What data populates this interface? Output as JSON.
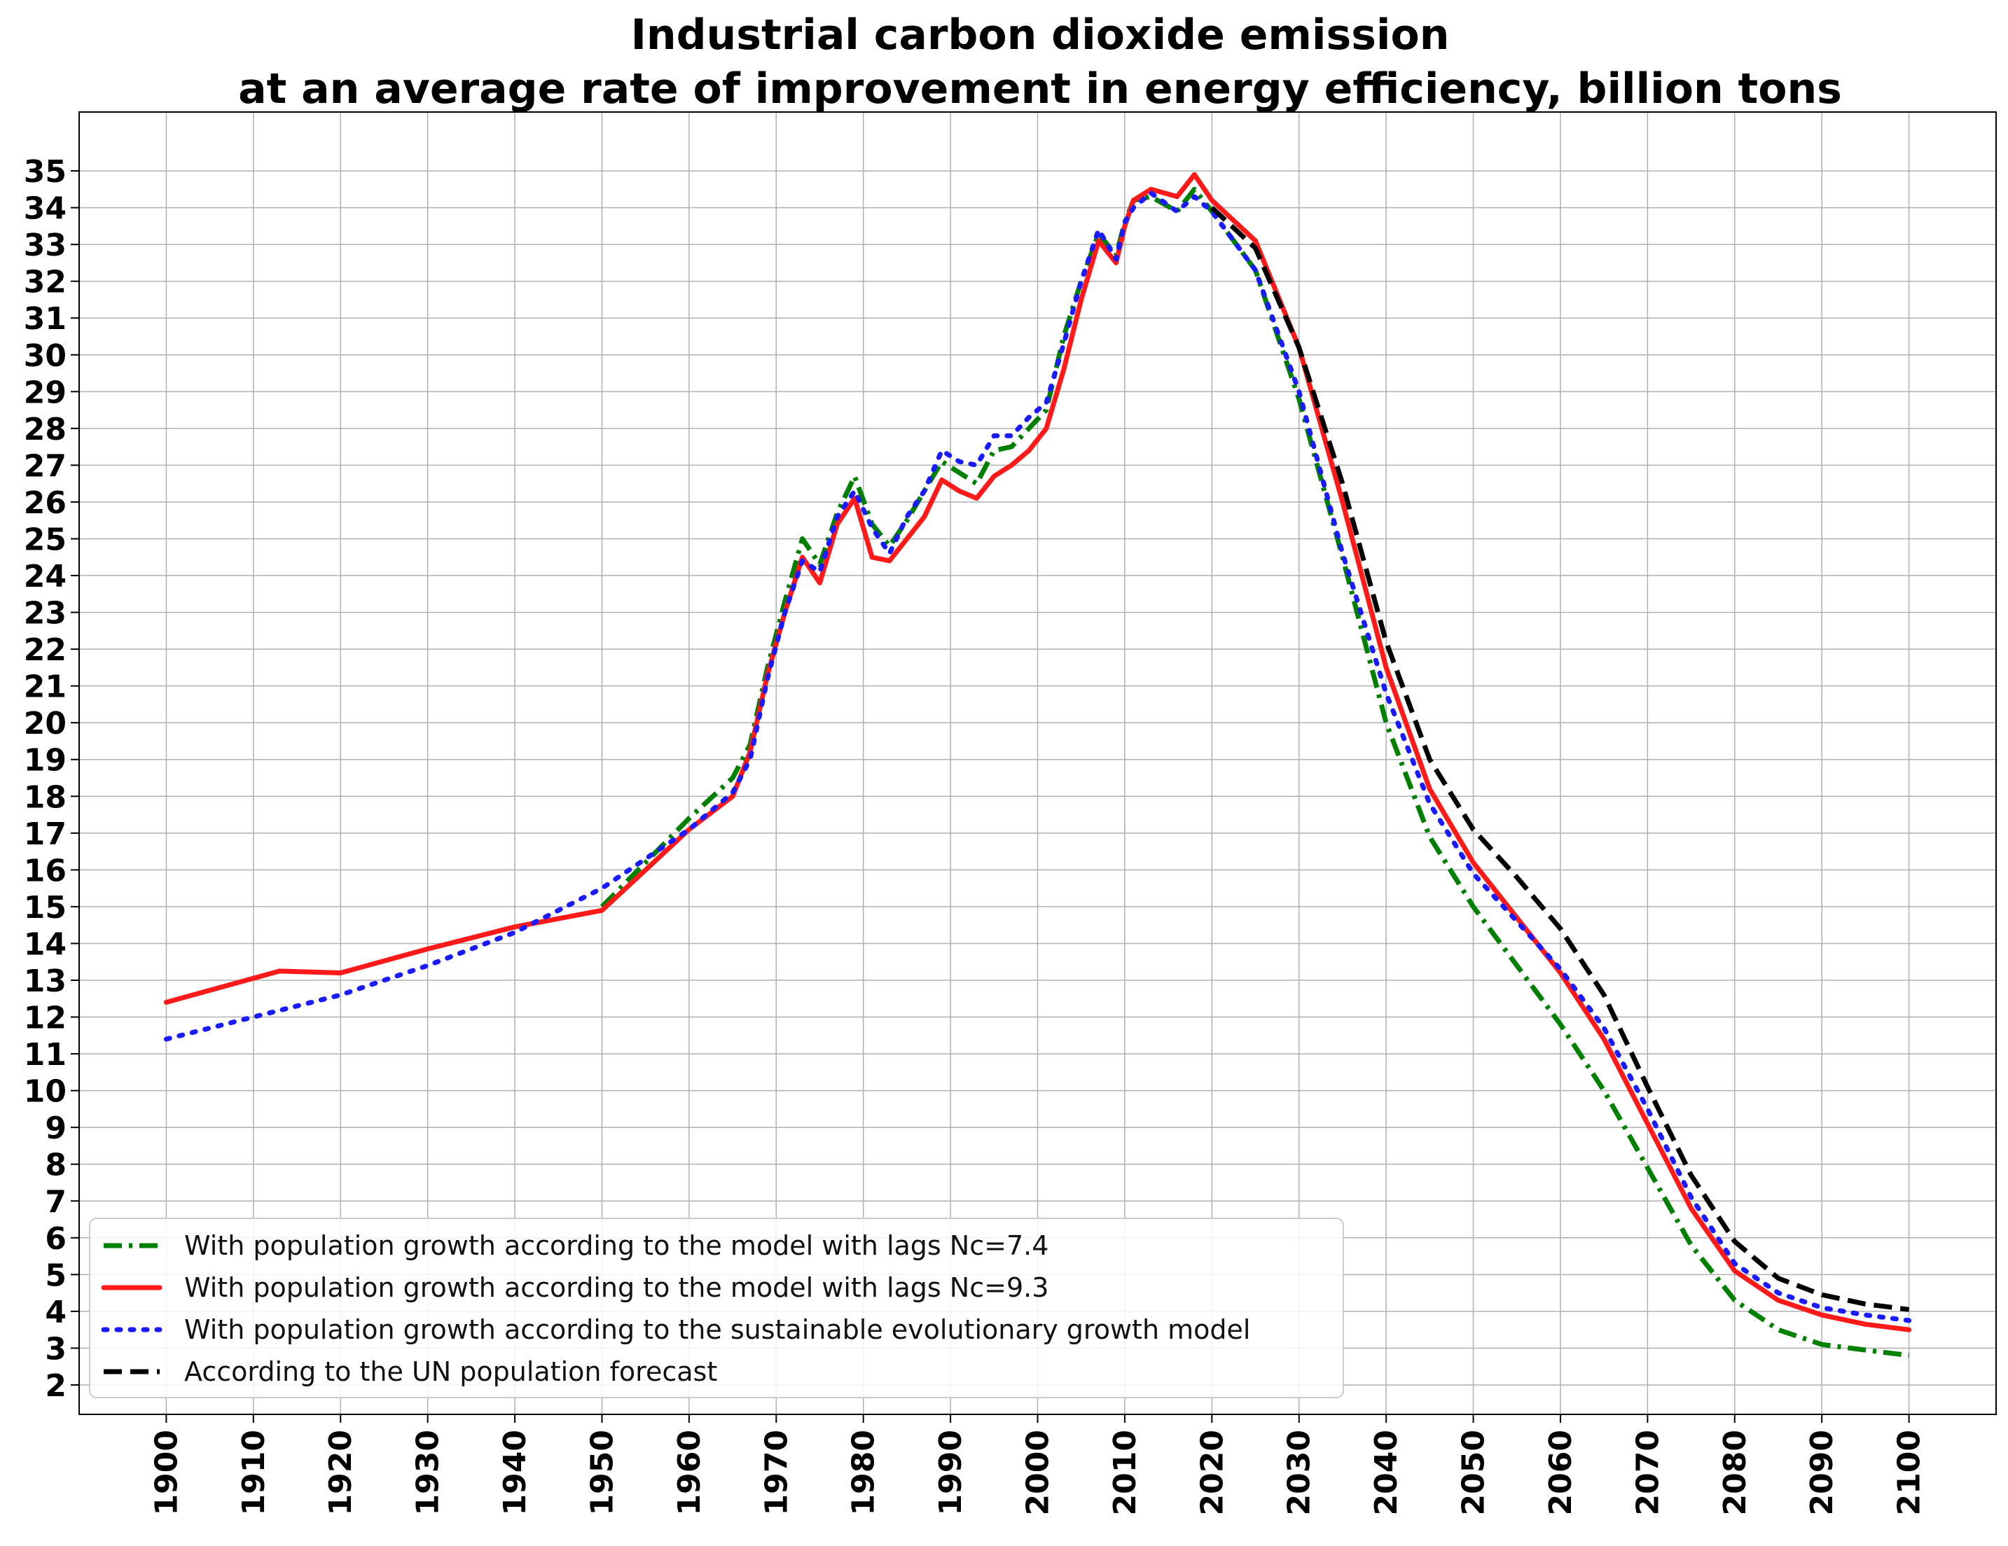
{
  "chart_data": {
    "type": "line",
    "title": "Industrial carbon dioxide emission",
    "subtitle": "at an average rate of improvement in energy efficiency, billion tons",
    "xlabel": "",
    "ylabel": "",
    "xlim": [
      1890,
      2110
    ],
    "ylim": [
      1.2,
      36.6
    ],
    "x_ticks": [
      1900,
      1910,
      1920,
      1930,
      1940,
      1950,
      1960,
      1970,
      1980,
      1990,
      2000,
      2010,
      2020,
      2030,
      2040,
      2050,
      2060,
      2070,
      2080,
      2090,
      2100
    ],
    "y_ticks": [
      2,
      3,
      4,
      5,
      6,
      7,
      8,
      9,
      10,
      11,
      12,
      13,
      14,
      15,
      16,
      17,
      18,
      19,
      20,
      21,
      22,
      23,
      24,
      25,
      26,
      27,
      28,
      29,
      30,
      31,
      32,
      33,
      34,
      35
    ],
    "grid": true,
    "legend_position": "bottom-left",
    "series": [
      {
        "name": "With population growth according to the model with lags Nc=7.4",
        "color": "#008000",
        "style": "dashdot",
        "x": [
          1950,
          1955,
          1960,
          1965,
          1967,
          1969,
          1971,
          1973,
          1975,
          1977,
          1979,
          1981,
          1983,
          1985,
          1987,
          1989,
          1991,
          1993,
          1995,
          1997,
          1999,
          2001,
          2003,
          2005,
          2007,
          2009,
          2010,
          2011,
          2013,
          2016,
          2018,
          2020,
          2025,
          2030,
          2035,
          2040,
          2045,
          2050,
          2055,
          2060,
          2065,
          2070,
          2075,
          2080,
          2085,
          2090,
          2095,
          2100
        ],
        "y": [
          15.0,
          16.2,
          17.4,
          18.5,
          19.4,
          21.5,
          23.3,
          25.0,
          24.3,
          25.7,
          26.7,
          25.4,
          24.8,
          25.5,
          26.3,
          27.1,
          26.8,
          26.5,
          27.4,
          27.5,
          28.0,
          28.5,
          30.5,
          32.0,
          33.3,
          32.7,
          33.6,
          34.2,
          34.3,
          33.9,
          34.5,
          33.9,
          32.3,
          28.8,
          24.5,
          20.0,
          16.9,
          15.0,
          13.4,
          11.8,
          10.0,
          7.9,
          5.8,
          4.3,
          3.5,
          3.1,
          2.95,
          2.8
        ]
      },
      {
        "name": "With population growth according to the model with lags  Nc=9.3",
        "color": "#ff1a1a",
        "style": "solid",
        "x": [
          1900,
          1913,
          1920,
          1930,
          1940,
          1950,
          1955,
          1960,
          1965,
          1967,
          1969,
          1971,
          1973,
          1975,
          1977,
          1979,
          1981,
          1983,
          1985,
          1987,
          1989,
          1991,
          1993,
          1995,
          1997,
          1999,
          2001,
          2003,
          2005,
          2007,
          2009,
          2010,
          2011,
          2013,
          2016,
          2018,
          2020,
          2025,
          2030,
          2035,
          2040,
          2045,
          2050,
          2055,
          2060,
          2065,
          2070,
          2075,
          2080,
          2085,
          2090,
          2095,
          2100
        ],
        "y": [
          12.4,
          13.25,
          13.2,
          13.85,
          14.45,
          14.9,
          16.0,
          17.1,
          18.0,
          19.2,
          21.3,
          23.0,
          24.5,
          23.8,
          25.4,
          26.1,
          24.5,
          24.4,
          25.0,
          25.6,
          26.6,
          26.3,
          26.1,
          26.7,
          27.0,
          27.4,
          28.0,
          29.6,
          31.5,
          33.1,
          32.5,
          33.5,
          34.2,
          34.5,
          34.3,
          34.9,
          34.2,
          33.1,
          30.2,
          26.0,
          21.5,
          18.2,
          16.2,
          14.7,
          13.2,
          11.4,
          9.1,
          6.8,
          5.1,
          4.3,
          3.9,
          3.65,
          3.5
        ]
      },
      {
        "name": "With population growth according to the sustainable evolutionary growth model",
        "color": "#1a1aff",
        "style": "dotted",
        "x": [
          1900,
          1910,
          1920,
          1930,
          1940,
          1950,
          1955,
          1960,
          1965,
          1967,
          1969,
          1971,
          1973,
          1975,
          1977,
          1979,
          1981,
          1983,
          1985,
          1987,
          1989,
          1991,
          1993,
          1995,
          1997,
          1999,
          2001,
          2003,
          2005,
          2007,
          2009,
          2010,
          2011,
          2013,
          2016,
          2018,
          2020,
          2025,
          2030,
          2035,
          2040,
          2045,
          2050,
          2055,
          2060,
          2065,
          2070,
          2075,
          2080,
          2085,
          2090,
          2095,
          2100
        ],
        "y": [
          11.4,
          12.0,
          12.6,
          13.4,
          14.3,
          15.5,
          16.3,
          17.1,
          18.1,
          19.0,
          21.2,
          23.0,
          24.4,
          24.1,
          25.6,
          26.3,
          25.3,
          24.6,
          25.6,
          26.3,
          27.4,
          27.1,
          27.0,
          27.8,
          27.8,
          28.3,
          28.7,
          30.3,
          32.0,
          33.4,
          32.6,
          33.6,
          34.0,
          34.4,
          33.9,
          34.3,
          33.9,
          32.3,
          29.0,
          24.6,
          20.8,
          17.8,
          15.9,
          14.6,
          13.3,
          11.7,
          9.5,
          7.1,
          5.3,
          4.5,
          4.1,
          3.9,
          3.75
        ]
      },
      {
        "name": "According to the UN population forecast",
        "color": "#000000",
        "style": "dashed",
        "x": [
          2020,
          2025,
          2030,
          2035,
          2040,
          2045,
          2050,
          2055,
          2060,
          2065,
          2070,
          2075,
          2080,
          2085,
          2090,
          2095,
          2100
        ],
        "y": [
          34.0,
          32.9,
          30.2,
          26.5,
          22.2,
          19.0,
          17.1,
          15.8,
          14.4,
          12.6,
          10.1,
          7.7,
          5.9,
          4.9,
          4.45,
          4.2,
          4.05
        ]
      }
    ]
  }
}
